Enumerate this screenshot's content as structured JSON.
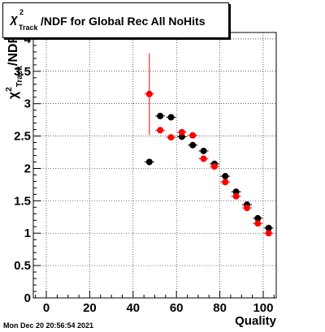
{
  "title_box": {
    "symbol": "χ",
    "superscript": "2",
    "subscript": "Track",
    "text": "/NDF for Global Rec All NoHits"
  },
  "timestamp": "Mon Dec 20 20:56:54 2021",
  "chart_data": {
    "type": "scatter",
    "title": "χ2Track/NDF for Global Rec All NoHits",
    "xlabel": "Quality",
    "ylabel": "χ2Track/NDF",
    "xlim": [
      -6,
      106
    ],
    "ylim": [
      0,
      4.1
    ],
    "x_ticks": [
      0,
      20,
      40,
      60,
      80,
      100
    ],
    "x_tick_labels": [
      "0",
      "20",
      "40",
      "60",
      "80",
      "100"
    ],
    "y_ticks": [
      0,
      0.5,
      1,
      1.5,
      2,
      2.5,
      3,
      3.5,
      4
    ],
    "y_tick_labels": [
      "0",
      "0.5",
      "1",
      "1.5",
      "2",
      "2.5",
      "3",
      "3.5",
      "4"
    ],
    "grid": true,
    "series": [
      {
        "color": "#000000",
        "x": [
          47.5,
          52.5,
          57.5,
          62.5,
          67.5,
          72.5,
          77.5,
          82.5,
          87.5,
          92.5,
          97.5,
          102.5
        ],
        "y": [
          2.1,
          2.81,
          2.79,
          2.49,
          2.36,
          2.27,
          2.07,
          1.88,
          1.64,
          1.44,
          1.23,
          1.08
        ],
        "yerr": [
          0.02,
          0.03,
          0.03,
          0.02,
          0.02,
          0.02,
          0.02,
          0.02,
          0.02,
          0.02,
          0.02,
          0.02
        ]
      },
      {
        "color": "#ff0000",
        "x": [
          47.5,
          52.5,
          57.5,
          62.5,
          67.5,
          72.5,
          77.5,
          82.5,
          87.5,
          92.5,
          97.5,
          102.5
        ],
        "y": [
          3.15,
          2.59,
          2.48,
          2.56,
          2.51,
          2.15,
          2.03,
          1.79,
          1.57,
          1.39,
          1.15,
          1.0
        ],
        "yerr": [
          0.63,
          0.05,
          0.03,
          0.03,
          0.03,
          0.03,
          0.03,
          0.03,
          0.03,
          0.03,
          0.03,
          0.03
        ]
      }
    ]
  }
}
